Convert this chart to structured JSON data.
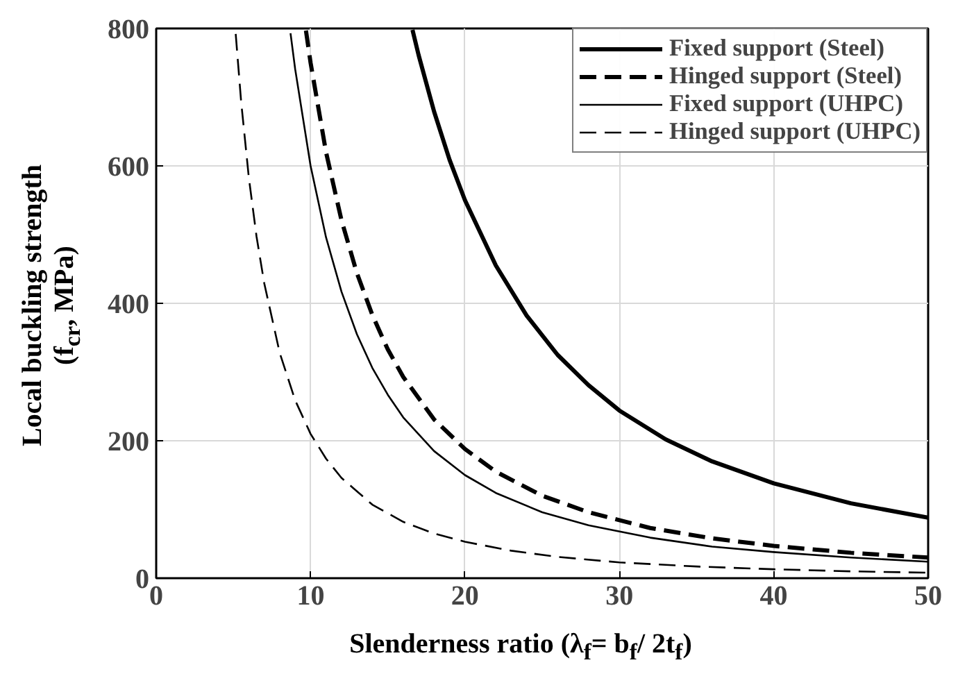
{
  "chart_data": {
    "type": "line",
    "xlabel": "Slenderness ratio (λ$_{f}$= b$_{f}$/ 2t$_{f}$)",
    "ylabel": "Local buckling strength\n(f$_{cr}$, MPa)",
    "xlim": [
      0,
      50
    ],
    "ylim": [
      0,
      800
    ],
    "xticks": [
      0,
      10,
      20,
      30,
      40,
      50
    ],
    "yticks": [
      0,
      200,
      400,
      600,
      800
    ],
    "grid": true,
    "legend": "top right",
    "marker": "none",
    "series": [
      {
        "name": "Fixed support (Steel)",
        "color": "#000000",
        "line_style": "solid",
        "x": [
          16.6,
          17,
          18,
          19,
          20,
          22,
          24,
          26,
          28,
          30,
          33,
          36,
          40,
          45,
          50
        ],
        "values": [
          798,
          761,
          679,
          609,
          550,
          455,
          382,
          325,
          281,
          244,
          202,
          170,
          138,
          109,
          88
        ]
      },
      {
        "name": "Hinged support (Steel)",
        "color": "#000000",
        "line_style": "dashed",
        "x": [
          9.7,
          10,
          11,
          12,
          13,
          14,
          15,
          16,
          18,
          20,
          22,
          25,
          28,
          32,
          36,
          40,
          45,
          50
        ],
        "values": [
          797,
          750,
          620,
          521,
          444,
          383,
          333,
          293,
          231,
          188,
          155,
          120,
          96,
          73,
          58,
          47,
          37,
          30
        ]
      },
      {
        "name": "Fixed support (UHPC)",
        "color": "#000000",
        "line_style": "solid",
        "x": [
          8.7,
          9,
          10,
          11,
          12,
          13,
          14,
          15,
          16,
          18,
          20,
          22,
          25,
          28,
          32,
          36,
          40,
          45,
          50
        ],
        "values": [
          793,
          741,
          600,
          496,
          417,
          355,
          306,
          267,
          234,
          185,
          150,
          124,
          96,
          77,
          59,
          46,
          38,
          30,
          24
        ]
      },
      {
        "name": "Hinged support (UHPC)",
        "color": "#000000",
        "line_style": "dashed",
        "x": [
          5.15,
          5.5,
          6,
          6.5,
          7,
          8,
          9,
          10,
          11,
          12,
          14,
          16,
          18,
          20,
          23,
          26,
          30,
          35,
          40,
          45,
          50
        ],
        "values": [
          792,
          694,
          583,
          497,
          429,
          328,
          259,
          210,
          174,
          146,
          107,
          82,
          65,
          53,
          40,
          31,
          23,
          17,
          13,
          10,
          8
        ]
      }
    ]
  }
}
